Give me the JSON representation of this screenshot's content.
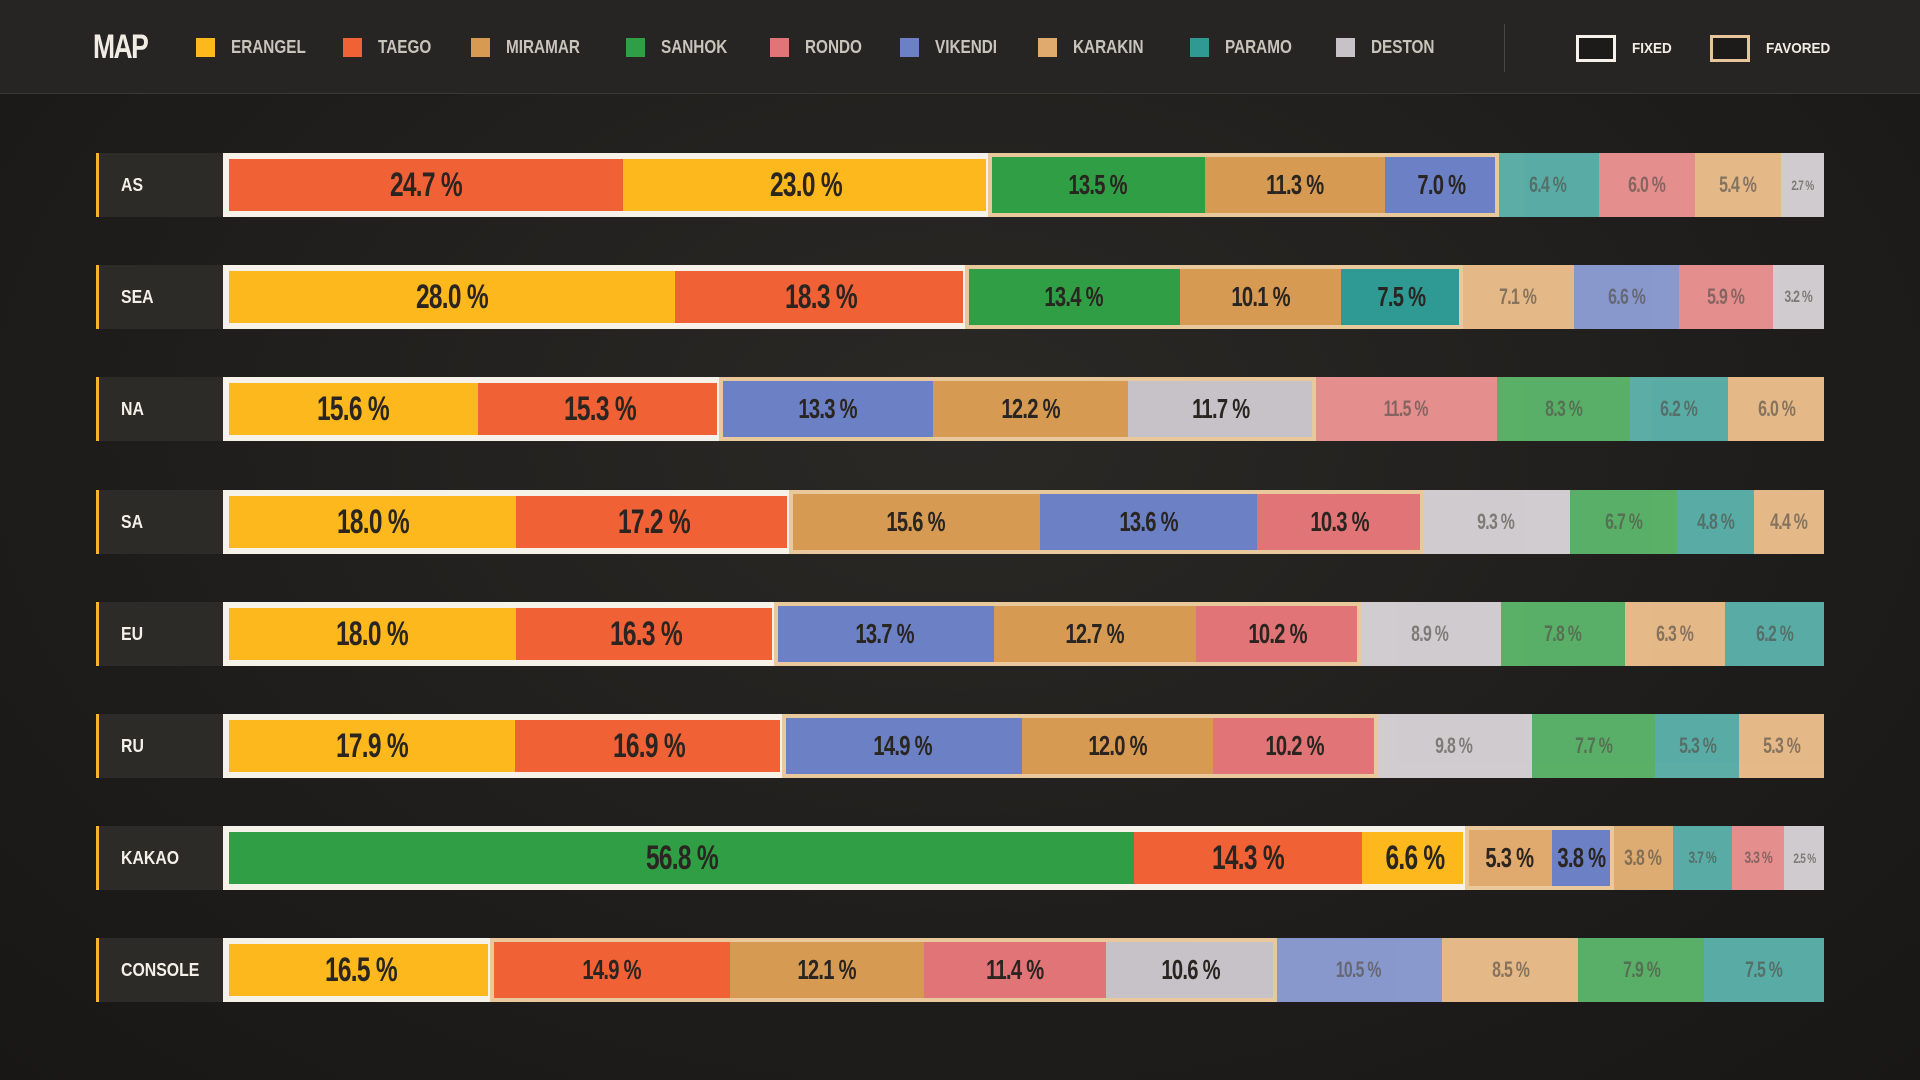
{
  "header": {
    "title": "MAP",
    "legend": [
      {
        "label": "ERANGEL",
        "color": "#fcb81d"
      },
      {
        "label": "TAEGO",
        "color": "#f06136"
      },
      {
        "label": "MIRAMAR",
        "color": "#d79a52"
      },
      {
        "label": "SANHOK",
        "color": "#2f9e44"
      },
      {
        "label": "RONDO",
        "color": "#e07476"
      },
      {
        "label": "VIKENDI",
        "color": "#6b80c5"
      },
      {
        "label": "KARAKIN",
        "color": "#e0a96d"
      },
      {
        "label": "PARAMO",
        "color": "#2f9a94"
      },
      {
        "label": "DESTON",
        "color": "#c7c2c8"
      }
    ],
    "key": {
      "fixed_label": "FIXED",
      "favored_label": "FAVORED"
    }
  },
  "chart_data": {
    "type": "bar",
    "orientation": "horizontal-stacked",
    "title": "MAP",
    "unit": "%",
    "rows": [
      {
        "region": "AS",
        "segments": [
          {
            "map": "TAEGO",
            "value": 24.7,
            "label": "24.7 %",
            "group": "fixed"
          },
          {
            "map": "ERANGEL",
            "value": 23.0,
            "label": "23.0 %",
            "group": "fixed"
          },
          {
            "map": "SANHOK",
            "value": 13.5,
            "label": "13.5 %",
            "group": "favored"
          },
          {
            "map": "MIRAMAR",
            "value": 11.3,
            "label": "11.3 %",
            "group": "favored"
          },
          {
            "map": "VIKENDI",
            "value": 7.0,
            "label": "7.0 %",
            "group": "favored"
          },
          {
            "map": "PARAMO",
            "value": 6.4,
            "label": "6.4 %",
            "group": "other"
          },
          {
            "map": "RONDO",
            "value": 6.0,
            "label": "6.0 %",
            "group": "other"
          },
          {
            "map": "KARAKIN",
            "value": 5.4,
            "label": "5.4 %",
            "group": "other"
          },
          {
            "map": "DESTON",
            "value": 2.7,
            "label": "2.7 %",
            "group": "other"
          }
        ]
      },
      {
        "region": "SEA",
        "segments": [
          {
            "map": "ERANGEL",
            "value": 28.0,
            "label": "28.0 %",
            "group": "fixed"
          },
          {
            "map": "TAEGO",
            "value": 18.3,
            "label": "18.3 %",
            "group": "fixed"
          },
          {
            "map": "SANHOK",
            "value": 13.4,
            "label": "13.4 %",
            "group": "favored"
          },
          {
            "map": "MIRAMAR",
            "value": 10.1,
            "label": "10.1 %",
            "group": "favored"
          },
          {
            "map": "PARAMO",
            "value": 7.5,
            "label": "7.5 %",
            "group": "favored"
          },
          {
            "map": "KARAKIN",
            "value": 7.1,
            "label": "7.1 %",
            "group": "other"
          },
          {
            "map": "VIKENDI",
            "value": 6.6,
            "label": "6.6 %",
            "group": "other"
          },
          {
            "map": "RONDO",
            "value": 5.9,
            "label": "5.9 %",
            "group": "other"
          },
          {
            "map": "DESTON",
            "value": 3.2,
            "label": "3.2 %",
            "group": "other"
          }
        ]
      },
      {
        "region": "NA",
        "segments": [
          {
            "map": "ERANGEL",
            "value": 15.6,
            "label": "15.6 %",
            "group": "fixed"
          },
          {
            "map": "TAEGO",
            "value": 15.3,
            "label": "15.3 %",
            "group": "fixed"
          },
          {
            "map": "VIKENDI",
            "value": 13.3,
            "label": "13.3 %",
            "group": "favored"
          },
          {
            "map": "MIRAMAR",
            "value": 12.2,
            "label": "12.2 %",
            "group": "favored"
          },
          {
            "map": "DESTON",
            "value": 11.7,
            "label": "11.7 %",
            "group": "favored"
          },
          {
            "map": "RONDO",
            "value": 11.5,
            "label": "11.5 %",
            "group": "other"
          },
          {
            "map": "SANHOK",
            "value": 8.3,
            "label": "8.3 %",
            "group": "other"
          },
          {
            "map": "PARAMO",
            "value": 6.2,
            "label": "6.2 %",
            "group": "other"
          },
          {
            "map": "KARAKIN",
            "value": 6.0,
            "label": "6.0 %",
            "group": "other"
          }
        ]
      },
      {
        "region": "SA",
        "segments": [
          {
            "map": "ERANGEL",
            "value": 18.0,
            "label": "18.0 %",
            "group": "fixed"
          },
          {
            "map": "TAEGO",
            "value": 17.2,
            "label": "17.2 %",
            "group": "fixed"
          },
          {
            "map": "MIRAMAR",
            "value": 15.6,
            "label": "15.6 %",
            "group": "favored"
          },
          {
            "map": "VIKENDI",
            "value": 13.6,
            "label": "13.6 %",
            "group": "favored"
          },
          {
            "map": "RONDO",
            "value": 10.3,
            "label": "10.3 %",
            "group": "favored"
          },
          {
            "map": "DESTON",
            "value": 9.3,
            "label": "9.3 %",
            "group": "other"
          },
          {
            "map": "SANHOK",
            "value": 6.7,
            "label": "6.7 %",
            "group": "other"
          },
          {
            "map": "PARAMO",
            "value": 4.8,
            "label": "4.8 %",
            "group": "other"
          },
          {
            "map": "KARAKIN",
            "value": 4.4,
            "label": "4.4 %",
            "group": "other"
          }
        ]
      },
      {
        "region": "EU",
        "segments": [
          {
            "map": "ERANGEL",
            "value": 18.0,
            "label": "18.0 %",
            "group": "fixed"
          },
          {
            "map": "TAEGO",
            "value": 16.3,
            "label": "16.3 %",
            "group": "fixed"
          },
          {
            "map": "VIKENDI",
            "value": 13.7,
            "label": "13.7 %",
            "group": "favored"
          },
          {
            "map": "MIRAMAR",
            "value": 12.7,
            "label": "12.7 %",
            "group": "favored"
          },
          {
            "map": "RONDO",
            "value": 10.2,
            "label": "10.2 %",
            "group": "favored"
          },
          {
            "map": "DESTON",
            "value": 8.9,
            "label": "8.9 %",
            "group": "other"
          },
          {
            "map": "SANHOK",
            "value": 7.8,
            "label": "7.8 %",
            "group": "other"
          },
          {
            "map": "KARAKIN",
            "value": 6.3,
            "label": "6.3 %",
            "group": "other"
          },
          {
            "map": "PARAMO",
            "value": 6.2,
            "label": "6.2 %",
            "group": "other"
          }
        ]
      },
      {
        "region": "RU",
        "segments": [
          {
            "map": "ERANGEL",
            "value": 17.9,
            "label": "17.9 %",
            "group": "fixed"
          },
          {
            "map": "TAEGO",
            "value": 16.9,
            "label": "16.9 %",
            "group": "fixed"
          },
          {
            "map": "VIKENDI",
            "value": 14.9,
            "label": "14.9 %",
            "group": "favored"
          },
          {
            "map": "MIRAMAR",
            "value": 12.0,
            "label": "12.0 %",
            "group": "favored"
          },
          {
            "map": "RONDO",
            "value": 10.2,
            "label": "10.2 %",
            "group": "favored"
          },
          {
            "map": "DESTON",
            "value": 9.8,
            "label": "9.8 %",
            "group": "other"
          },
          {
            "map": "SANHOK",
            "value": 7.7,
            "label": "7.7 %",
            "group": "other"
          },
          {
            "map": "PARAMO",
            "value": 5.3,
            "label": "5.3 %",
            "group": "other"
          },
          {
            "map": "KARAKIN",
            "value": 5.3,
            "label": "5.3 %",
            "group": "other"
          }
        ]
      },
      {
        "region": "KAKAO",
        "segments": [
          {
            "map": "SANHOK",
            "value": 56.8,
            "label": "56.8 %",
            "group": "fixed"
          },
          {
            "map": "TAEGO",
            "value": 14.3,
            "label": "14.3 %",
            "group": "fixed"
          },
          {
            "map": "ERANGEL",
            "value": 6.6,
            "label": "6.6 %",
            "group": "fixed"
          },
          {
            "map": "KARAKIN",
            "value": 5.3,
            "label": "5.3 %",
            "group": "favored"
          },
          {
            "map": "VIKENDI",
            "value": 3.8,
            "label": "3.8 %",
            "group": "favored"
          },
          {
            "map": "MIRAMAR",
            "value": 3.8,
            "label": "3.8 %",
            "group": "other"
          },
          {
            "map": "PARAMO",
            "value": 3.7,
            "label": "3.7 %",
            "group": "other"
          },
          {
            "map": "RONDO",
            "value": 3.3,
            "label": "3.3 %",
            "group": "other"
          },
          {
            "map": "DESTON",
            "value": 2.5,
            "label": "2.5 %",
            "group": "other"
          }
        ]
      },
      {
        "region": "CONSOLE",
        "segments": [
          {
            "map": "ERANGEL",
            "value": 16.5,
            "label": "16.5 %",
            "group": "fixed"
          },
          {
            "map": "TAEGO",
            "value": 14.9,
            "label": "14.9 %",
            "group": "favored"
          },
          {
            "map": "MIRAMAR",
            "value": 12.1,
            "label": "12.1 %",
            "group": "favored"
          },
          {
            "map": "RONDO",
            "value": 11.4,
            "label": "11.4 %",
            "group": "favored"
          },
          {
            "map": "DESTON",
            "value": 10.6,
            "label": "10.6 %",
            "group": "favored"
          },
          {
            "map": "VIKENDI",
            "value": 10.5,
            "label": "10.5 %",
            "group": "other"
          },
          {
            "map": "KARAKIN",
            "value": 8.5,
            "label": "8.5 %",
            "group": "other"
          },
          {
            "map": "SANHOK",
            "value": 7.9,
            "label": "7.9 %",
            "group": "other"
          },
          {
            "map": "PARAMO",
            "value": 7.5,
            "label": "7.5 %",
            "group": "other"
          }
        ]
      }
    ]
  }
}
